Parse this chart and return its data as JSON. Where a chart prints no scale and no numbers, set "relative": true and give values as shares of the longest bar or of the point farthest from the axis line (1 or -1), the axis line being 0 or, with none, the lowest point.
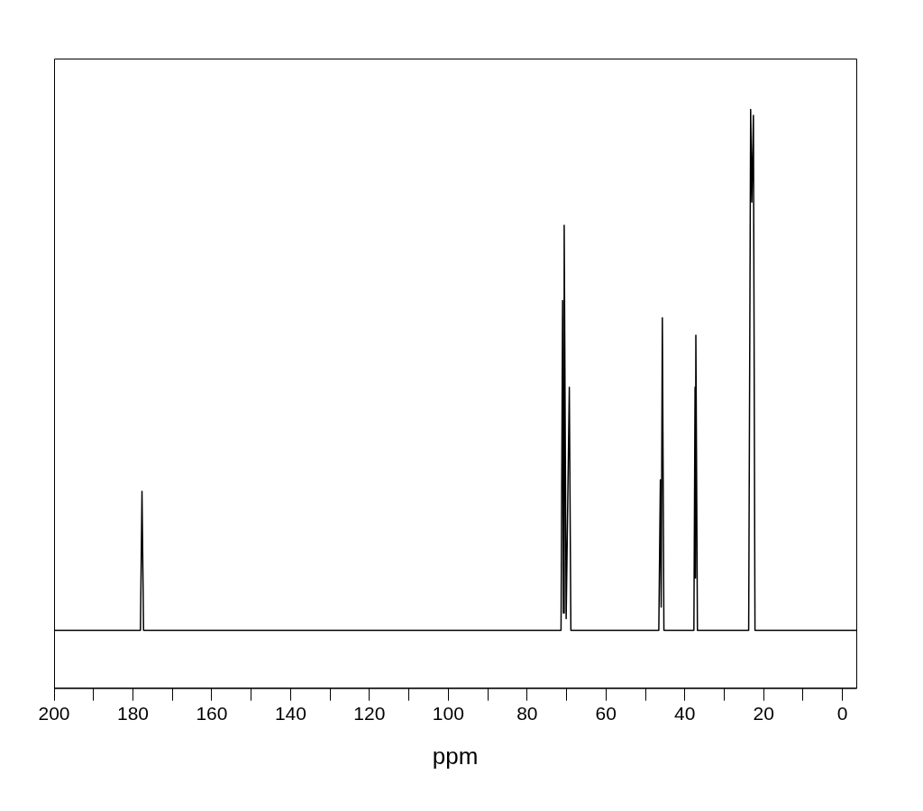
{
  "chart_data": {
    "type": "line",
    "xlabel": "ppm",
    "relative": true,
    "xlim": [
      200,
      -3.5
    ],
    "xticks": [
      200,
      {
        "value": 190,
        "label": null
      },
      180,
      {
        "value": 170,
        "label": null
      },
      160,
      {
        "value": 150,
        "label": null
      },
      140,
      {
        "value": 130,
        "label": null
      },
      120,
      {
        "value": 110,
        "label": null
      },
      100,
      {
        "value": 90,
        "label": null
      },
      80,
      {
        "value": 70,
        "label": null
      },
      60,
      {
        "value": 50,
        "label": null
      },
      40,
      {
        "value": 30,
        "label": null
      },
      20,
      {
        "value": 10,
        "label": null
      },
      0
    ],
    "grid": false,
    "legend": false,
    "marker": "none",
    "line_style": "solid",
    "series": [
      {
        "color": "#000000",
        "x": [
          200,
          178.1,
          177.7,
          177.3,
          71.4,
          71.0,
          70.8,
          70.6,
          70.1,
          69.3,
          68.9,
          46.6,
          46.2,
          46.0,
          45.7,
          45.3,
          37.7,
          37.4,
          37.3,
          37.2,
          36.8,
          23.8,
          23.3,
          23.0,
          22.6,
          22.2,
          -3.5
        ],
        "values": [
          0.1,
          0.1,
          0.34,
          0.1,
          0.1,
          0.67,
          0.13,
          0.8,
          0.12,
          0.52,
          0.1,
          0.1,
          0.36,
          0.14,
          0.64,
          0.1,
          0.1,
          0.52,
          0.19,
          0.61,
          0.1,
          0.1,
          1.0,
          0.84,
          0.99,
          0.1,
          0.1
        ]
      }
    ]
  }
}
